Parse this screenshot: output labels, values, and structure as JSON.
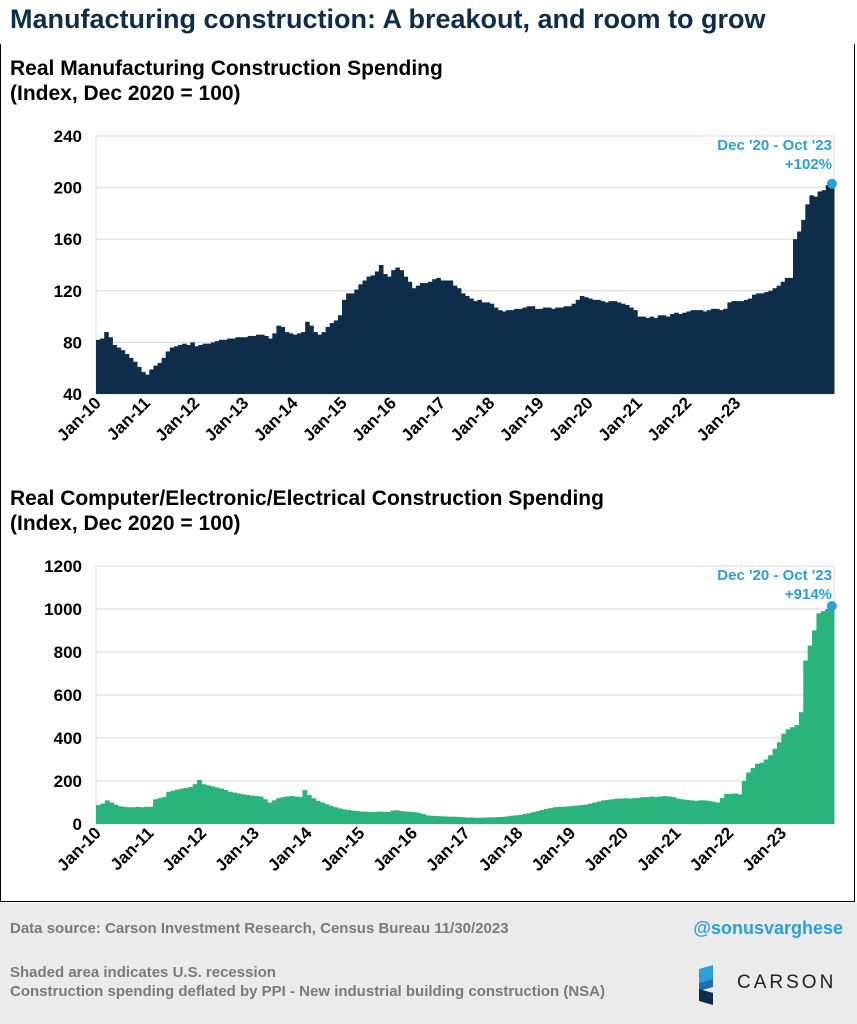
{
  "title": "Manufacturing construction: A breakout, and room to grow",
  "colors": {
    "navy": "#0e2d4a",
    "green": "#2bb37c",
    "accent": "#2a9fd8",
    "grid": "#d9d9d9"
  },
  "chart_data": [
    {
      "type": "bar",
      "title_line1": "Real Manufacturing Construction Spending",
      "title_line2": "(Index, Dec 2020 = 100)",
      "ylim": [
        40,
        240
      ],
      "yticks": [
        40,
        80,
        120,
        160,
        200,
        240
      ],
      "xtick_labels": [
        "Jan-10",
        "Jan-11",
        "Jan-12",
        "Jan-13",
        "Jan-14",
        "Jan-15",
        "Jan-16",
        "Jan-17",
        "Jan-18",
        "Jan-19",
        "Jan-20",
        "Jan-21",
        "Jan-22",
        "Jan-23"
      ],
      "x_start": "Jan-10",
      "x_end": "Oct-23",
      "annotation_line1": "Dec '20 - Oct '23",
      "annotation_line2": "+102%",
      "annotation_value": 203,
      "color": "#0e2d4a",
      "values": [
        82,
        83,
        88,
        84,
        78,
        76,
        74,
        71,
        68,
        65,
        61,
        57,
        55,
        59,
        62,
        64,
        68,
        73,
        76,
        77,
        78,
        79,
        78,
        80,
        77,
        78,
        79,
        79,
        80,
        81,
        82,
        82,
        83,
        83,
        84,
        84,
        84,
        85,
        85,
        86,
        86,
        85,
        83,
        87,
        93,
        92,
        88,
        87,
        86,
        87,
        88,
        96,
        93,
        88,
        86,
        88,
        92,
        95,
        97,
        101,
        113,
        118,
        118,
        121,
        125,
        128,
        131,
        132,
        135,
        140,
        133,
        131,
        136,
        138,
        136,
        131,
        127,
        122,
        124,
        126,
        126,
        127,
        129,
        130,
        128,
        128,
        128,
        124,
        122,
        118,
        116,
        114,
        112,
        113,
        111,
        111,
        110,
        107,
        105,
        104,
        105,
        105,
        106,
        106,
        107,
        108,
        108,
        106,
        106,
        107,
        107,
        106,
        107,
        107,
        108,
        108,
        110,
        113,
        116,
        115,
        114,
        113,
        113,
        112,
        111,
        112,
        112,
        111,
        110,
        109,
        107,
        105,
        100,
        100,
        99,
        100,
        99,
        101,
        101,
        100,
        102,
        103,
        102,
        103,
        104,
        105,
        105,
        105,
        104,
        105,
        106,
        106,
        105,
        106,
        111,
        112,
        112,
        112,
        113,
        114,
        117,
        118,
        118,
        119,
        120,
        122,
        124,
        127,
        130,
        130,
        160,
        166,
        175,
        187,
        194,
        193,
        197,
        198,
        202,
        203
      ]
    },
    {
      "type": "bar",
      "title_line1": "Real Computer/Electronic/Electrical Construction Spending",
      "title_line2": "(Index, Dec 2020 = 100)",
      "ylim": [
        0,
        1200
      ],
      "yticks": [
        0,
        200,
        400,
        600,
        800,
        1000,
        1200
      ],
      "xtick_labels": [
        "Jan-10",
        "Jan-11",
        "Jan-12",
        "Jan-13",
        "Jan-14",
        "Jan-15",
        "Jan-16",
        "Jan-17",
        "Jan-18",
        "Jan-19",
        "Jan-20",
        "Jan-21",
        "Jan-22",
        "Jan-23"
      ],
      "x_start": "Jan-10",
      "x_end": "Oct-23",
      "annotation_line1": "Dec '20 - Oct '23",
      "annotation_line2": "+914%",
      "annotation_value": 1014,
      "color": "#2bb37c",
      "values": [
        88,
        95,
        110,
        100,
        90,
        82,
        80,
        78,
        78,
        80,
        78,
        80,
        80,
        115,
        120,
        125,
        150,
        155,
        160,
        165,
        168,
        172,
        185,
        205,
        185,
        180,
        175,
        170,
        165,
        158,
        150,
        146,
        142,
        138,
        135,
        132,
        130,
        128,
        115,
        100,
        110,
        120,
        125,
        128,
        130,
        128,
        125,
        158,
        135,
        120,
        108,
        100,
        92,
        85,
        78,
        72,
        68,
        65,
        62,
        60,
        58,
        57,
        55,
        56,
        58,
        57,
        56,
        62,
        64,
        60,
        58,
        57,
        55,
        52,
        46,
        40,
        38,
        37,
        36,
        35,
        34,
        34,
        33,
        32,
        30,
        30,
        29,
        29,
        30,
        31,
        31,
        32,
        33,
        35,
        38,
        40,
        42,
        46,
        50,
        55,
        60,
        65,
        70,
        74,
        78,
        80,
        80,
        82,
        84,
        86,
        88,
        90,
        95,
        100,
        105,
        110,
        112,
        115,
        118,
        118,
        120,
        118,
        120,
        122,
        125,
        125,
        128,
        125,
        128,
        130,
        128,
        125,
        118,
        115,
        112,
        110,
        108,
        110,
        110,
        108,
        104,
        100,
        120,
        140,
        140,
        142,
        138,
        200,
        240,
        260,
        280,
        285,
        300,
        320,
        350,
        380,
        420,
        440,
        450,
        460,
        520,
        760,
        830,
        900,
        980,
        990,
        1000,
        1014
      ]
    }
  ],
  "footer": {
    "source": "Data source: Carson Investment Research, Census Bureau   11/30/2023",
    "handle": "@sonusvarghese",
    "note1": "Shaded area indicates U.S. recession",
    "note2": "Construction spending deflated by PPI - New industrial building construction (NSA)",
    "logo_text": "CARSON",
    "logo_icon": "carson-chevron-logo"
  }
}
